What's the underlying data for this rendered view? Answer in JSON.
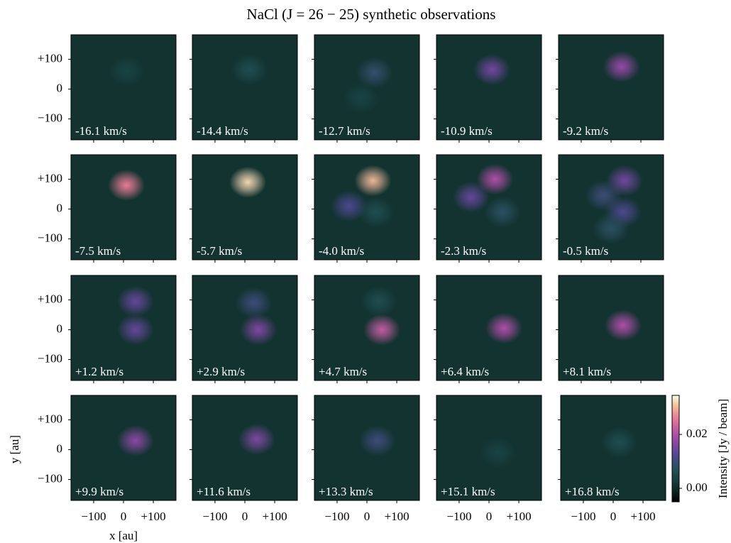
{
  "chart_data": {
    "type": "heatmap",
    "title": "NaCl (J = 26 − 25) synthetic observations",
    "x_label": "x [au]",
    "y_label": "y [au]",
    "colorbar_label": "Intensity [Jy / beam]",
    "xlim": [
      -176,
      176
    ],
    "ylim": [
      -170,
      182
    ],
    "xticks": [
      {
        "value": -100,
        "label": "−100"
      },
      0,
      {
        "value": 100,
        "label": "+100"
      }
    ],
    "yticks": [
      {
        "value": -100,
        "label": "−100"
      },
      0,
      {
        "value": 100,
        "label": "+100"
      }
    ],
    "clim": [
      -0.005,
      0.0345
    ],
    "cticks": [
      {
        "value": 0,
        "label": "0.00"
      },
      {
        "value": 0.02,
        "label": "0.02"
      }
    ],
    "panels": [
      {
        "label": "-16.1 km/s",
        "components": [
          {
            "x": 10,
            "y": 60,
            "intensity": 0.004
          }
        ]
      },
      {
        "label": "-14.4 km/s",
        "components": [
          {
            "x": 15,
            "y": 65,
            "intensity": 0.006
          }
        ]
      },
      {
        "label": "-12.7 km/s",
        "components": [
          {
            "x": 25,
            "y": 55,
            "intensity": 0.009
          },
          {
            "x": -20,
            "y": -30,
            "intensity": 0.004
          }
        ]
      },
      {
        "label": "-10.9 km/s",
        "components": [
          {
            "x": 10,
            "y": 65,
            "intensity": 0.015
          }
        ]
      },
      {
        "label": "-9.2 km/s",
        "components": [
          {
            "x": 35,
            "y": 75,
            "intensity": 0.018
          }
        ]
      },
      {
        "label": "-7.5 km/s",
        "components": [
          {
            "x": 10,
            "y": 80,
            "intensity": 0.026
          }
        ]
      },
      {
        "label": "-5.7 km/s",
        "components": [
          {
            "x": 10,
            "y": 90,
            "intensity": 0.032
          }
        ]
      },
      {
        "label": "-4.0 km/s",
        "components": [
          {
            "x": 20,
            "y": 95,
            "intensity": 0.03
          },
          {
            "x": -60,
            "y": 10,
            "intensity": 0.012
          },
          {
            "x": 30,
            "y": -10,
            "intensity": 0.006
          }
        ]
      },
      {
        "label": "-2.3 km/s",
        "components": [
          {
            "x": 20,
            "y": 100,
            "intensity": 0.02
          },
          {
            "x": -60,
            "y": 40,
            "intensity": 0.014
          },
          {
            "x": 45,
            "y": -10,
            "intensity": 0.008
          }
        ]
      },
      {
        "label": "-0.5 km/s",
        "components": [
          {
            "x": 45,
            "y": 95,
            "intensity": 0.015
          },
          {
            "x": -25,
            "y": 45,
            "intensity": 0.01
          },
          {
            "x": 40,
            "y": -10,
            "intensity": 0.012
          },
          {
            "x": 0,
            "y": -65,
            "intensity": 0.008
          }
        ]
      },
      {
        "label": "+1.2 km/s",
        "components": [
          {
            "x": 40,
            "y": 95,
            "intensity": 0.014
          },
          {
            "x": 40,
            "y": 0,
            "intensity": 0.014
          }
        ]
      },
      {
        "label": "+2.9 km/s",
        "components": [
          {
            "x": 30,
            "y": 90,
            "intensity": 0.01
          },
          {
            "x": 45,
            "y": 0,
            "intensity": 0.016
          }
        ]
      },
      {
        "label": "+4.7 km/s",
        "components": [
          {
            "x": 40,
            "y": 95,
            "intensity": 0.006
          },
          {
            "x": 50,
            "y": 0,
            "intensity": 0.022
          }
        ]
      },
      {
        "label": "+6.4 km/s",
        "components": [
          {
            "x": 50,
            "y": 5,
            "intensity": 0.02
          }
        ]
      },
      {
        "label": "+8.1 km/s",
        "components": [
          {
            "x": 40,
            "y": 15,
            "intensity": 0.02
          }
        ]
      },
      {
        "label": "+9.9 km/s",
        "components": [
          {
            "x": 40,
            "y": 30,
            "intensity": 0.017
          }
        ]
      },
      {
        "label": "+11.6 km/s",
        "components": [
          {
            "x": 40,
            "y": 35,
            "intensity": 0.016
          }
        ]
      },
      {
        "label": "+13.3 km/s",
        "components": [
          {
            "x": 35,
            "y": 30,
            "intensity": 0.01
          }
        ]
      },
      {
        "label": "+15.1 km/s",
        "components": [
          {
            "x": 30,
            "y": -10,
            "intensity": 0.004
          }
        ]
      },
      {
        "label": "+16.8 km/s",
        "components": [
          {
            "x": 20,
            "y": 25,
            "intensity": 0.006
          }
        ]
      }
    ]
  }
}
